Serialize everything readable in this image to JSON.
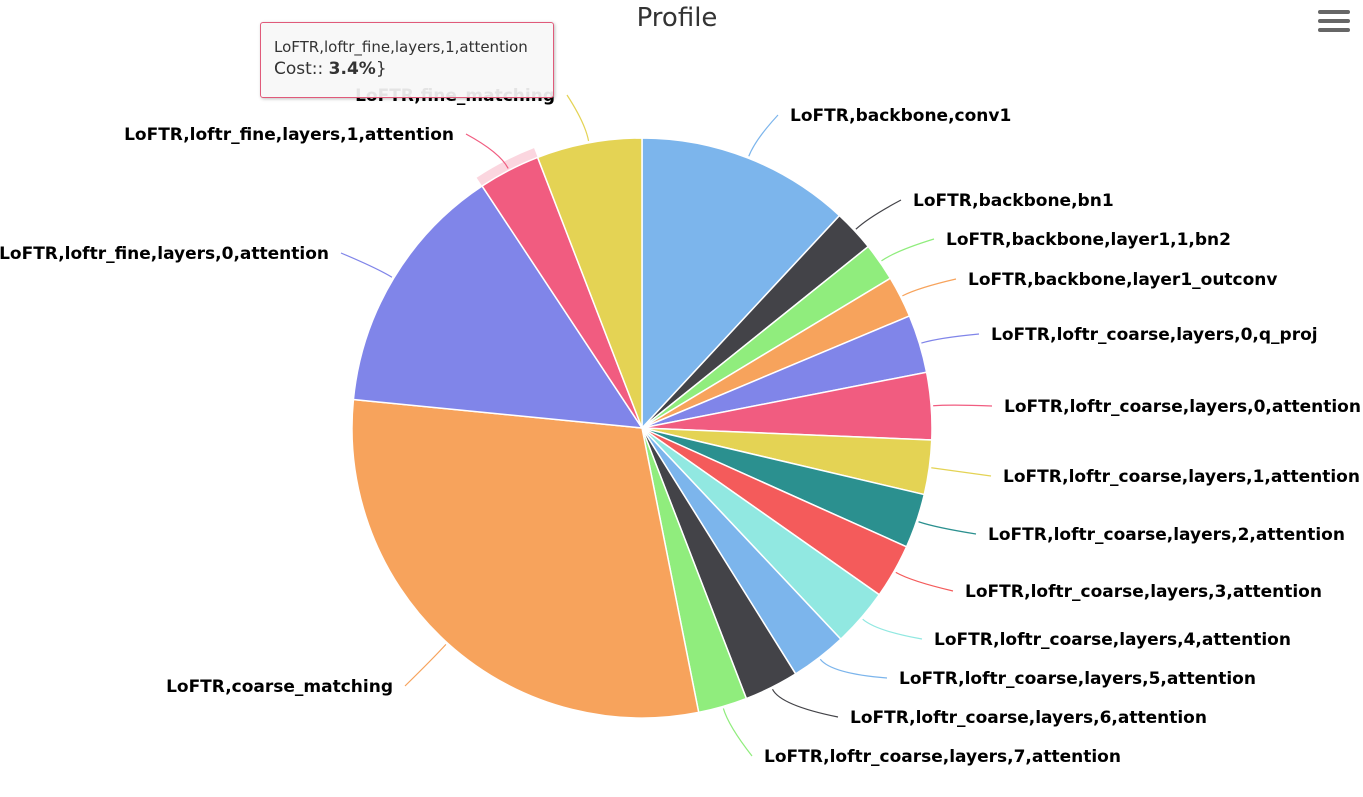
{
  "menu": {
    "icon": "hamburger-menu-icon"
  },
  "tooltip": {
    "header": "LoFTR,loftr_fine,layers,1,attention",
    "label": "Cost:: ",
    "value": "3.4%",
    "suffix": "}",
    "border_color": "#e05a7a"
  },
  "chart_data": {
    "type": "pie",
    "title": "Profile",
    "unit": "%",
    "hovered_slice": "LoFTR,loftr_fine,layers,1,attention",
    "legend": "none",
    "slices": [
      {
        "name": "LoFTR,backbone,conv1",
        "value": 11.8,
        "color": "#7cb5ec"
      },
      {
        "name": "LoFTR,backbone,bn1",
        "value": 2.3,
        "color": "#434348"
      },
      {
        "name": "LoFTR,backbone,layer1,1,bn2",
        "value": 2.1,
        "color": "#90ed7d"
      },
      {
        "name": "LoFTR,backbone,layer1_outconv",
        "value": 2.3,
        "color": "#f7a35c"
      },
      {
        "name": "LoFTR,loftr_coarse,layers,0,q_proj",
        "value": 3.2,
        "color": "#8085e9"
      },
      {
        "name": "LoFTR,loftr_coarse,layers,0,attention",
        "value": 3.7,
        "color": "#f15c80"
      },
      {
        "name": "LoFTR,loftr_coarse,layers,1,attention",
        "value": 3.0,
        "color": "#e4d354"
      },
      {
        "name": "LoFTR,loftr_coarse,layers,2,attention",
        "value": 3.0,
        "color": "#2b908f"
      },
      {
        "name": "LoFTR,loftr_coarse,layers,3,attention",
        "value": 3.0,
        "color": "#f45b5b"
      },
      {
        "name": "LoFTR,loftr_coarse,layers,4,attention",
        "value": 3.2,
        "color": "#91e8e1"
      },
      {
        "name": "LoFTR,loftr_coarse,layers,5,attention",
        "value": 3.1,
        "color": "#7cb5ec"
      },
      {
        "name": "LoFTR,loftr_coarse,layers,6,attention",
        "value": 3.0,
        "color": "#434348"
      },
      {
        "name": "LoFTR,loftr_coarse,layers,7,attention",
        "value": 2.7,
        "color": "#90ed7d"
      },
      {
        "name": "LoFTR,coarse_matching",
        "value": 29.4,
        "color": "#f7a35c"
      },
      {
        "name": "LoFTR,loftr_fine,layers,0,attention",
        "value": 14.0,
        "color": "#8085e9"
      },
      {
        "name": "LoFTR,loftr_fine,layers,1,attention",
        "value": 3.4,
        "color": "#f15c80"
      },
      {
        "name": "LoFTR,fine_matching",
        "value": 5.8,
        "color": "#e4d354"
      }
    ]
  }
}
